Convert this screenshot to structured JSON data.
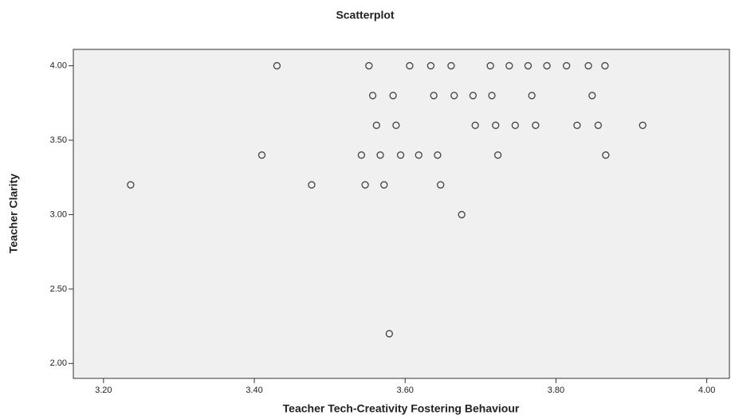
{
  "chart_data": {
    "type": "scatter",
    "title": "Scatterplot",
    "x_label": "Teacher Tech-Creativity Fostering Behaviour",
    "y_label": "Teacher Clarity",
    "color": "#444444",
    "background": "#f0f0f0",
    "xlim": [
      3.16,
      4.03
    ],
    "ylim": [
      1.9,
      4.11
    ],
    "xticks": [
      {
        "value": 3.2,
        "label": "3.20"
      },
      {
        "value": 3.4,
        "label": "3.40"
      },
      {
        "value": 3.6,
        "label": "3.60"
      },
      {
        "value": 3.8,
        "label": "3.80"
      },
      {
        "value": 4,
        "label": "4.00"
      }
    ],
    "yticks": [
      {
        "value": 2,
        "label": "2.00"
      },
      {
        "value": 2.5,
        "label": "2.50"
      },
      {
        "value": 3,
        "label": "3.00"
      },
      {
        "value": 3.5,
        "label": "3.50"
      },
      {
        "value": 4,
        "label": "4.00"
      }
    ],
    "x": [
      3.43,
      3.552,
      3.606,
      3.634,
      3.661,
      3.713,
      3.738,
      3.763,
      3.788,
      3.814,
      3.843,
      3.865,
      3.557,
      3.584,
      3.638,
      3.665,
      3.69,
      3.715,
      3.768,
      3.848,
      3.562,
      3.588,
      3.693,
      3.72,
      3.746,
      3.773,
      3.828,
      3.856,
      3.915,
      3.41,
      3.542,
      3.567,
      3.594,
      3.618,
      3.643,
      3.723,
      3.866,
      3.236,
      3.476,
      3.547,
      3.572,
      3.647,
      3.675,
      3.579
    ],
    "values": [
      4,
      4,
      4,
      4,
      4,
      4,
      4,
      4,
      4,
      4,
      4,
      4,
      3.8,
      3.8,
      3.8,
      3.8,
      3.8,
      3.8,
      3.8,
      3.8,
      3.6,
      3.6,
      3.6,
      3.6,
      3.6,
      3.6,
      3.6,
      3.6,
      3.6,
      3.4,
      3.4,
      3.4,
      3.4,
      3.4,
      3.4,
      3.4,
      3.4,
      3.2,
      3.2,
      3.2,
      3.2,
      3.2,
      3,
      2.2
    ]
  }
}
